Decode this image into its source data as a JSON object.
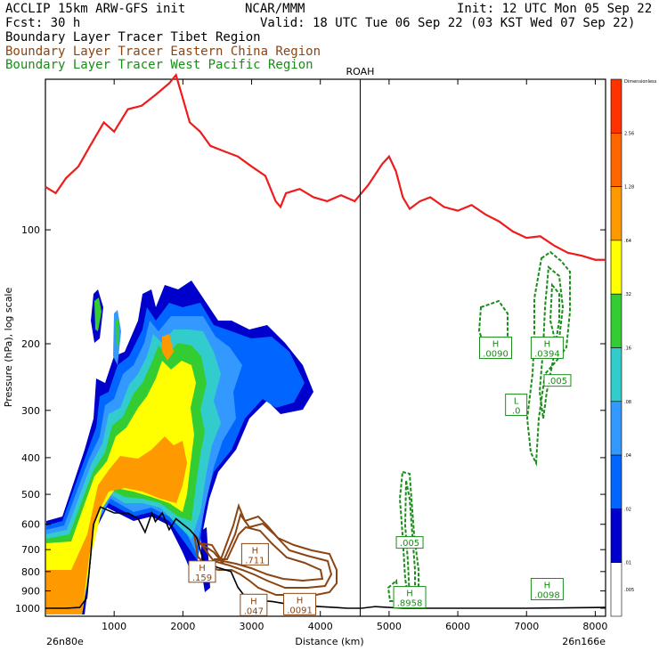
{
  "header": {
    "title_left": "ACCLIP 15km ARW-GFS init",
    "title_center": "NCAR/MMM",
    "init": "Init: 12 UTC Mon 05 Sep 22",
    "fcst": "Fcst:   30 h",
    "valid": "Valid: 18 UTC Tue 06 Sep 22 (03 KST Wed 07 Sep 22)"
  },
  "legend": [
    {
      "label": "Boundary Layer Tracer  Tibet Region",
      "color": "#000000"
    },
    {
      "label": "Boundary Layer Tracer  Eastern China Region",
      "color": "#8b4513"
    },
    {
      "label": "Boundary Layer Tracer  West Pacific Region",
      "color": "#1a8c1a"
    }
  ],
  "chart_data": {
    "type": "heatmap",
    "title": "",
    "xlabel": "Distance (km)",
    "ylabel": "Pressure (hPa), log scale",
    "xlim": [
      0,
      8150
    ],
    "ylim": [
      1050,
      40
    ],
    "log_y": true,
    "x_ticks": [
      1000,
      2000,
      3000,
      4000,
      5000,
      6000,
      7000,
      8000
    ],
    "y_ticks": [
      100,
      200,
      300,
      400,
      500,
      600,
      700,
      800,
      900,
      1000
    ],
    "x_endpoint_left": "26n80e",
    "x_endpoint_right": "26n166e",
    "marker": {
      "label": "ROAH",
      "x": 4580
    },
    "colorbar": {
      "levels": [
        "Dimensionless",
        "2.56",
        "1.28",
        ".64",
        ".32",
        ".16",
        ".08",
        ".04",
        ".02",
        ".01",
        ".005"
      ],
      "colors": [
        "#ff3300",
        "#ff6600",
        "#ff9900",
        "#ffff00",
        "#33cc33",
        "#33cccc",
        "#3399ff",
        "#0066ff",
        "#0000cc",
        "#ffffff"
      ]
    },
    "tropopause_line": {
      "color": "#ee1c1c",
      "x": [
        0,
        150,
        300,
        480,
        650,
        850,
        1000,
        1200,
        1400,
        1600,
        1800,
        1900,
        2000,
        2100,
        2250,
        2400,
        2600,
        2800,
        3000,
        3200,
        3350,
        3420,
        3500,
        3700,
        3900,
        4100,
        4300,
        4500,
        4700,
        4900,
        5000,
        5100,
        5200,
        5300,
        5450,
        5600,
        5800,
        6000,
        6200,
        6400,
        6600,
        6800,
        7000,
        7200,
        7400,
        7600,
        7800,
        8000,
        8150
      ],
      "y": [
        77,
        80,
        73,
        68,
        60,
        52,
        55,
        48,
        47,
        44,
        41,
        39,
        45,
        52,
        55,
        60,
        62,
        64,
        68,
        72,
        84,
        87,
        80,
        78,
        82,
        84,
        81,
        84,
        76,
        67,
        64,
        70,
        82,
        88,
        84,
        82,
        87,
        89,
        86,
        91,
        95,
        101,
        105,
        104,
        110,
        115,
        117,
        120,
        120
      ]
    },
    "terrain_line": {
      "color": "#000000",
      "x": [
        0,
        300,
        500,
        600,
        700,
        800,
        1000,
        1200,
        1350,
        1450,
        1550,
        1600,
        1700,
        1800,
        1900,
        2000,
        2100,
        2200,
        2300,
        2500,
        2700,
        2800,
        2900,
        3000,
        3300,
        3600,
        4000,
        4400,
        4600,
        4800,
        5200,
        6000,
        7000,
        8150
      ],
      "y": [
        1000,
        1000,
        995,
        940,
        600,
        540,
        560,
        560,
        580,
        630,
        560,
        590,
        560,
        620,
        580,
        600,
        620,
        650,
        750,
        780,
        800,
        880,
        930,
        950,
        960,
        980,
        990,
        1000,
        1000,
        990,
        1000,
        1000,
        1000,
        995
      ]
    },
    "highlow_labels": [
      {
        "type": "H",
        "value": ".0090",
        "x": 6550,
        "p": 205,
        "color": "#1a8c1a"
      },
      {
        "type": "H",
        "value": ".0394",
        "x": 7300,
        "p": 205,
        "color": "#1a8c1a"
      },
      {
        "type": "",
        "value": ".005",
        "x": 7450,
        "p": 250,
        "color": "#1a8c1a"
      },
      {
        "type": "L",
        "value": ".0",
        "x": 6850,
        "p": 290,
        "color": "#1a8c1a"
      },
      {
        "type": "",
        "value": ".005",
        "x": 5300,
        "p": 670,
        "color": "#1a8c1a"
      },
      {
        "type": "H",
        "value": ".8958",
        "x": 5300,
        "p": 935,
        "color": "#1a8c1a"
      },
      {
        "type": "H",
        "value": ".0098",
        "x": 7300,
        "p": 890,
        "color": "#1a8c1a"
      },
      {
        "type": "H",
        "value": ".711",
        "x": 3050,
        "p": 720,
        "color": "#8b4513"
      },
      {
        "type": "H",
        "value": ".159",
        "x": 2280,
        "p": 800,
        "color": "#8b4513"
      },
      {
        "type": "H",
        "value": ".047",
        "x": 3030,
        "p": 980,
        "color": "#8b4513"
      },
      {
        "type": "H",
        "value": ".0091",
        "x": 3700,
        "p": 975,
        "color": "#8b4513"
      }
    ]
  }
}
